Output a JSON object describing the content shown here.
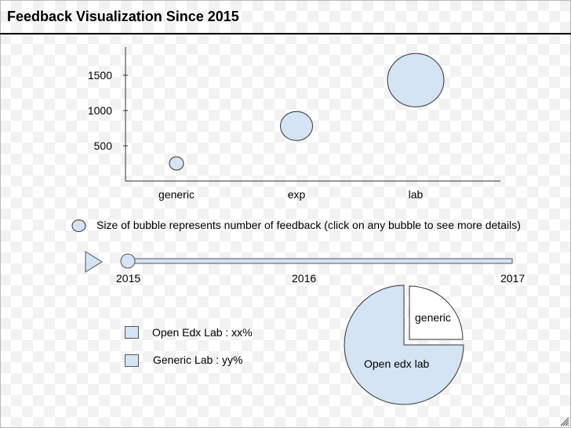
{
  "title": "Feedback Visualization Since 2015",
  "chart_data": {
    "type": "scatter",
    "title": "",
    "categories": [
      "generic",
      "exp",
      "lab"
    ],
    "y_ticks": [
      500,
      1000,
      1500
    ],
    "ylim": [
      0,
      1900
    ],
    "points": [
      {
        "category": "generic",
        "y": 250,
        "size": 1
      },
      {
        "category": "exp",
        "y": 780,
        "size": 2.2
      },
      {
        "category": "lab",
        "y": 1430,
        "size": 4.2
      }
    ],
    "legend_text": "Size of bubble represents number of feedback (click on any bubble to see more details)",
    "bubble_color": "#d4e4f4"
  },
  "timeline": {
    "labels": [
      "2015",
      "2016",
      "2017"
    ],
    "value": 2015,
    "range": [
      2015,
      2017
    ]
  },
  "legend": [
    {
      "label": "Open Edx Lab : xx%"
    },
    {
      "label": "Generic Lab : yy%"
    }
  ],
  "pie_data": {
    "type": "pie",
    "slices": [
      {
        "label": "Open edx lab",
        "share": 0.75
      },
      {
        "label": "generic",
        "share": 0.25
      }
    ]
  },
  "colors": {
    "fill": "#d4e4f4",
    "stroke": "#333333"
  },
  "icons": {
    "play": "play-icon",
    "resize": "resize-grip-icon"
  }
}
